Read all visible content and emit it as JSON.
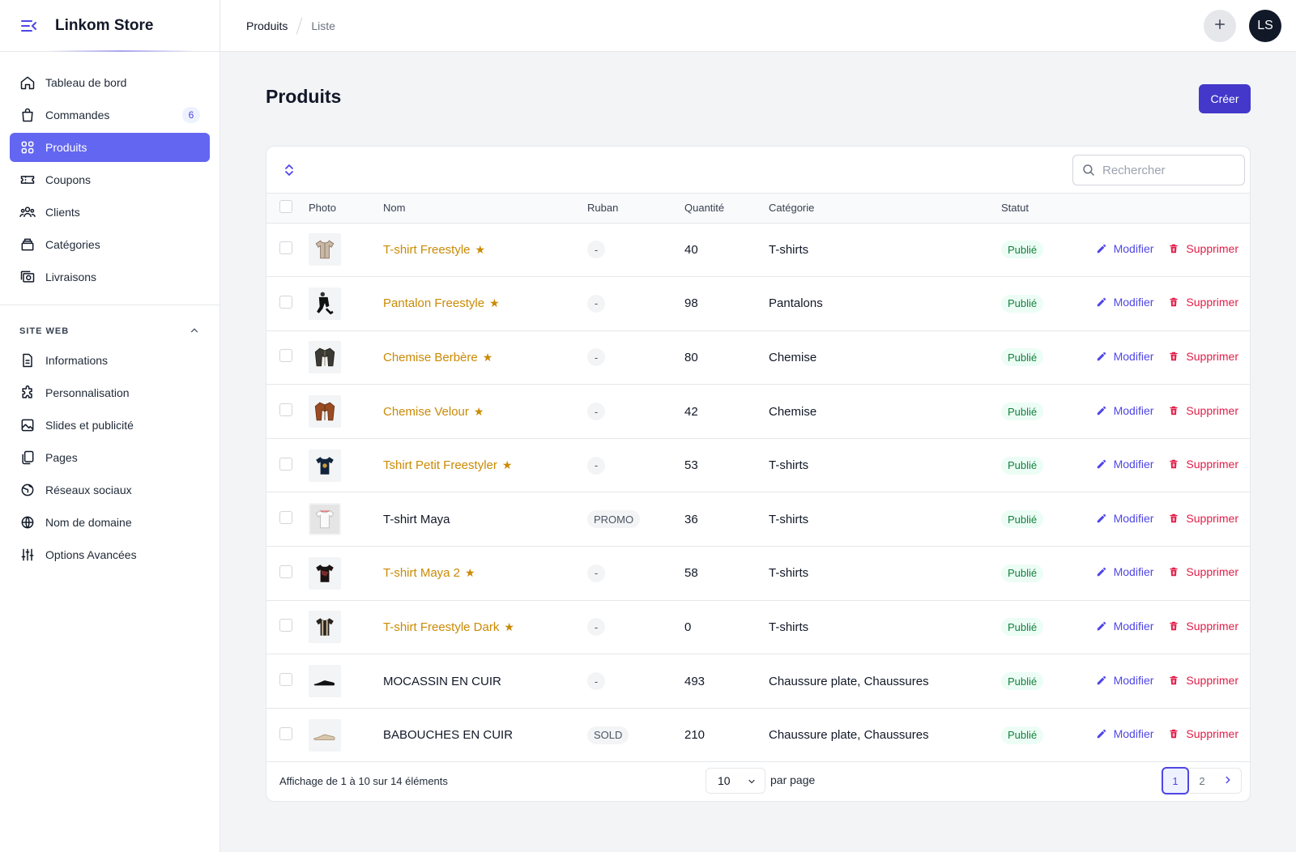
{
  "brand": {
    "name": "Linkom Store"
  },
  "sidebar": {
    "items": [
      {
        "label": "Tableau de bord",
        "icon": "home-icon"
      },
      {
        "label": "Commandes",
        "icon": "bag-icon",
        "badge": "6"
      },
      {
        "label": "Produits",
        "icon": "grid-icon",
        "active": true
      },
      {
        "label": "Coupons",
        "icon": "ticket-icon"
      },
      {
        "label": "Clients",
        "icon": "users-icon"
      },
      {
        "label": "Catégories",
        "icon": "layers-icon"
      },
      {
        "label": "Livraisons",
        "icon": "camera-icon"
      }
    ],
    "section_title": "SITE WEB",
    "section_items": [
      {
        "label": "Informations",
        "icon": "document-icon"
      },
      {
        "label": "Personnalisation",
        "icon": "puzzle-icon"
      },
      {
        "label": "Slides et publicité",
        "icon": "image-icon"
      },
      {
        "label": "Pages",
        "icon": "pages-icon"
      },
      {
        "label": "Réseaux sociaux",
        "icon": "globe-alt-icon"
      },
      {
        "label": "Nom de domaine",
        "icon": "globe-icon"
      },
      {
        "label": "Options Avancées",
        "icon": "sliders-icon"
      }
    ]
  },
  "breadcrumb": {
    "first": "Produits",
    "second": "Liste"
  },
  "user": {
    "initials": "LS"
  },
  "page": {
    "title": "Produits",
    "create_label": "Créer"
  },
  "search": {
    "placeholder": "Rechercher"
  },
  "table": {
    "headers": {
      "photo": "Photo",
      "name": "Nom",
      "ribbon": "Ruban",
      "quantity": "Quantité",
      "category": "Catégorie",
      "status": "Statut"
    },
    "edit_label": "Modifier",
    "delete_label": "Supprimer",
    "rows": [
      {
        "name": "T-shirt Freestyle",
        "featured": true,
        "ribbon": "-",
        "quantity": "40",
        "category": "T-shirts",
        "status": "Publié",
        "thumb": "shirt-light"
      },
      {
        "name": "Pantalon Freestyle",
        "featured": true,
        "ribbon": "-",
        "quantity": "98",
        "category": "Pantalons",
        "status": "Publié",
        "thumb": "pants"
      },
      {
        "name": "Chemise Berbère",
        "featured": true,
        "ribbon": "-",
        "quantity": "80",
        "category": "Chemise",
        "status": "Publié",
        "thumb": "jacket-dark"
      },
      {
        "name": "Chemise Velour",
        "featured": true,
        "ribbon": "-",
        "quantity": "42",
        "category": "Chemise",
        "status": "Publié",
        "thumb": "jacket-brown"
      },
      {
        "name": "Tshirt Petit Freestyler",
        "featured": true,
        "ribbon": "-",
        "quantity": "53",
        "category": "T-shirts",
        "status": "Publié",
        "thumb": "shirt-navy"
      },
      {
        "name": "T-shirt Maya",
        "featured": false,
        "ribbon": "PROMO",
        "quantity": "36",
        "category": "T-shirts",
        "status": "Publié",
        "thumb": "shirt-white"
      },
      {
        "name": "T-shirt Maya 2",
        "featured": true,
        "ribbon": "-",
        "quantity": "58",
        "category": "T-shirts",
        "status": "Publié",
        "thumb": "shirt-black"
      },
      {
        "name": "T-shirt Freestyle Dark",
        "featured": true,
        "ribbon": "-",
        "quantity": "0",
        "category": "T-shirts",
        "status": "Publié",
        "thumb": "shirt-striped"
      },
      {
        "name": "MOCASSIN EN CUIR",
        "featured": false,
        "ribbon": "-",
        "quantity": "493",
        "category": "Chaussure plate, Chaussures",
        "status": "Publié",
        "thumb": "shoe-black"
      },
      {
        "name": "BABOUCHES EN CUIR",
        "featured": false,
        "ribbon": "SOLD",
        "quantity": "210",
        "category": "Chaussure plate, Chaussures",
        "status": "Publié",
        "thumb": "shoe-beige"
      }
    ]
  },
  "footer": {
    "summary": "Affichage de 1 à 10 sur 14 éléments",
    "per_page_value": "10",
    "per_page_label": "par page",
    "pages": [
      "1",
      "2"
    ]
  },
  "colors": {
    "accent": "#4f46e5",
    "active_nav": "#6366f1",
    "featured_name": "#ca8a04",
    "delete": "#e11d48",
    "status": "#15803d"
  }
}
